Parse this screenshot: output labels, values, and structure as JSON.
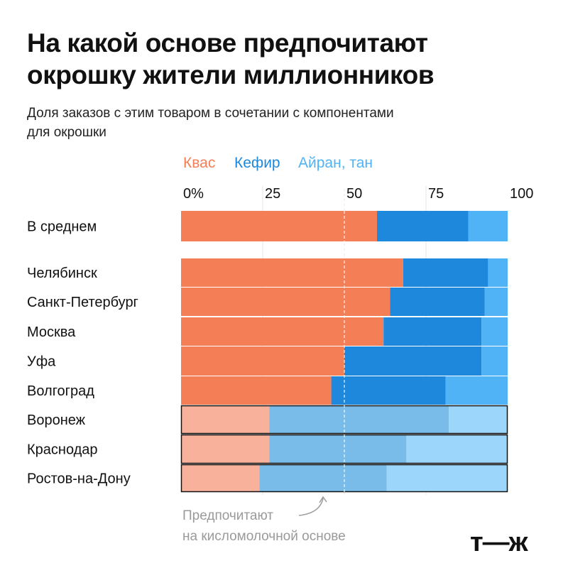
{
  "title_lines": [
    "На какой основе предпочитают",
    "окрошку жители миллионников"
  ],
  "subtitle_lines": [
    "Доля заказов с этим товаром в сочетании с компонентами",
    "для окрошки"
  ],
  "note_lines": [
    "Предпочитают",
    "на кисломолочной основе"
  ],
  "logo": "т—ж",
  "colors": {
    "kvas": "#F47F57",
    "kefir": "#1E88DC",
    "ayran": "#4FB3F6",
    "kvas_light": "#F8B29C",
    "kefir_light": "#79BCEA",
    "ayran_light": "#9DD6FB",
    "outline": "#111111",
    "grid": "#e6e6e6"
  },
  "chart_data": {
    "type": "bar",
    "orientation": "horizontal",
    "stacked": true,
    "xlim": [
      0,
      100
    ],
    "x_ticks": [
      "0%",
      "25",
      "50",
      "75",
      "100"
    ],
    "legend_position": "top",
    "series": [
      {
        "name": "Квас",
        "values": [
          60,
          68,
          64,
          62,
          50,
          46,
          27,
          27,
          24
        ]
      },
      {
        "name": "Кефир",
        "values": [
          28,
          26,
          29,
          30,
          42,
          35,
          55,
          42,
          39
        ]
      },
      {
        "name": "Айран, тан",
        "values": [
          12,
          6,
          7,
          8,
          8,
          19,
          18,
          31,
          37
        ]
      }
    ],
    "categories": [
      "В среднем",
      "Челябинск",
      "Санкт-Петербург",
      "Москва",
      "Уфа",
      "Волгоград",
      "Воронеж",
      "Краснодар",
      "Ростов-на-Дону"
    ],
    "highlighted": [
      "Воронеж",
      "Краснодар",
      "Ростов-на-Дону"
    ]
  }
}
